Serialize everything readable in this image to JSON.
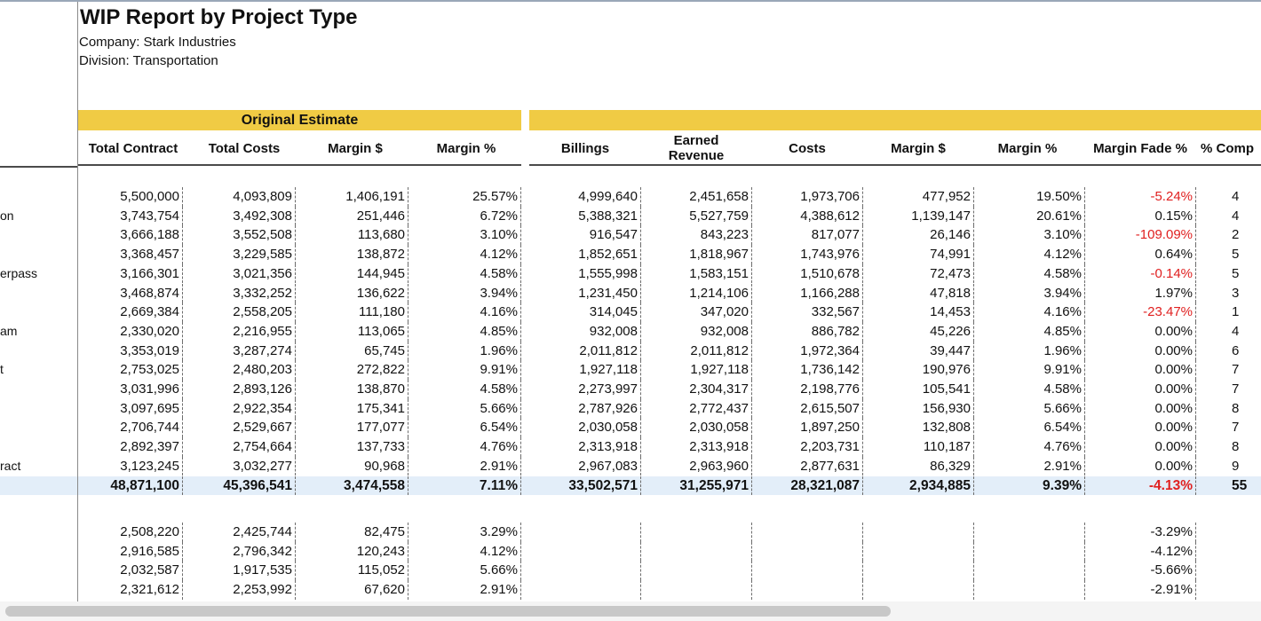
{
  "report": {
    "title": "WIP Report by Project Type",
    "company": "Company: Stark Industries",
    "division": "Division: Transportation"
  },
  "group_header": {
    "original_estimate": "Original Estimate"
  },
  "headers": [
    "Total Contract",
    "Total Costs",
    "Margin $",
    "Margin %",
    "Billings",
    "Earned Revenue",
    "Costs",
    "Margin $",
    "Margin %",
    "Margin Fade %",
    "% Comp"
  ],
  "row_labels": [
    "",
    "on",
    "",
    "",
    "erpass",
    "",
    "",
    "am",
    "",
    "t",
    "",
    "",
    "",
    "",
    "ract"
  ],
  "rows": [
    [
      "5,500,000",
      "4,093,809",
      "1,406,191",
      "25.57%",
      "4,999,640",
      "2,451,658",
      "1,973,706",
      "477,952",
      "19.50%",
      "-5.24%",
      "4"
    ],
    [
      "3,743,754",
      "3,492,308",
      "251,446",
      "6.72%",
      "5,388,321",
      "5,527,759",
      "4,388,612",
      "1,139,147",
      "20.61%",
      "0.15%",
      "4"
    ],
    [
      "3,666,188",
      "3,552,508",
      "113,680",
      "3.10%",
      "916,547",
      "843,223",
      "817,077",
      "26,146",
      "3.10%",
      "-109.09%",
      "2"
    ],
    [
      "3,368,457",
      "3,229,585",
      "138,872",
      "4.12%",
      "1,852,651",
      "1,818,967",
      "1,743,976",
      "74,991",
      "4.12%",
      "0.64%",
      "5"
    ],
    [
      "3,166,301",
      "3,021,356",
      "144,945",
      "4.58%",
      "1,555,998",
      "1,583,151",
      "1,510,678",
      "72,473",
      "4.58%",
      "-0.14%",
      "5"
    ],
    [
      "3,468,874",
      "3,332,252",
      "136,622",
      "3.94%",
      "1,231,450",
      "1,214,106",
      "1,166,288",
      "47,818",
      "3.94%",
      "1.97%",
      "3"
    ],
    [
      "2,669,384",
      "2,558,205",
      "111,180",
      "4.16%",
      "314,045",
      "347,020",
      "332,567",
      "14,453",
      "4.16%",
      "-23.47%",
      "1"
    ],
    [
      "2,330,020",
      "2,216,955",
      "113,065",
      "4.85%",
      "932,008",
      "932,008",
      "886,782",
      "45,226",
      "4.85%",
      "0.00%",
      "4"
    ],
    [
      "3,353,019",
      "3,287,274",
      "65,745",
      "1.96%",
      "2,011,812",
      "2,011,812",
      "1,972,364",
      "39,447",
      "1.96%",
      "0.00%",
      "6"
    ],
    [
      "2,753,025",
      "2,480,203",
      "272,822",
      "9.91%",
      "1,927,118",
      "1,927,118",
      "1,736,142",
      "190,976",
      "9.91%",
      "0.00%",
      "7"
    ],
    [
      "3,031,996",
      "2,893,126",
      "138,870",
      "4.58%",
      "2,273,997",
      "2,304,317",
      "2,198,776",
      "105,541",
      "4.58%",
      "0.00%",
      "7"
    ],
    [
      "3,097,695",
      "2,922,354",
      "175,341",
      "5.66%",
      "2,787,926",
      "2,772,437",
      "2,615,507",
      "156,930",
      "5.66%",
      "0.00%",
      "8"
    ],
    [
      "2,706,744",
      "2,529,667",
      "177,077",
      "6.54%",
      "2,030,058",
      "2,030,058",
      "1,897,250",
      "132,808",
      "6.54%",
      "0.00%",
      "7"
    ],
    [
      "2,892,397",
      "2,754,664",
      "137,733",
      "4.76%",
      "2,313,918",
      "2,313,918",
      "2,203,731",
      "110,187",
      "4.76%",
      "0.00%",
      "8"
    ],
    [
      "3,123,245",
      "3,032,277",
      "90,968",
      "2.91%",
      "2,967,083",
      "2,963,960",
      "2,877,631",
      "86,329",
      "2.91%",
      "0.00%",
      "9"
    ]
  ],
  "total_row": [
    "48,871,100",
    "45,396,541",
    "3,474,558",
    "7.11%",
    "33,502,571",
    "31,255,971",
    "28,321,087",
    "2,934,885",
    "9.39%",
    "-4.13%",
    "55"
  ],
  "rows2": [
    [
      "2,508,220",
      "2,425,744",
      "82,475",
      "3.29%",
      "",
      "",
      "",
      "",
      "",
      "-3.29%",
      ""
    ],
    [
      "2,916,585",
      "2,796,342",
      "120,243",
      "4.12%",
      "",
      "",
      "",
      "",
      "",
      "-4.12%",
      ""
    ],
    [
      "2,032,587",
      "1,917,535",
      "115,052",
      "5.66%",
      "",
      "",
      "",
      "",
      "",
      "-5.66%",
      ""
    ],
    [
      "2,321,612",
      "2,253,992",
      "67,620",
      "2.91%",
      "",
      "",
      "",
      "",
      "",
      "-2.91%",
      ""
    ]
  ],
  "colors": {
    "band": "#f0cb44",
    "total_bg": "#e3eef9",
    "negative": "#e02020"
  }
}
